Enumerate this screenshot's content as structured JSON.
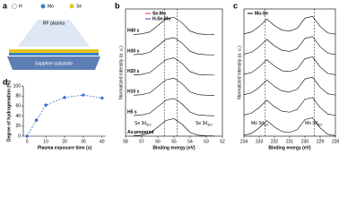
{
  "panel_a": {
    "label": "a",
    "legend": [
      "H",
      "Mo",
      "Se"
    ],
    "source": "RF plasma",
    "substrate": "Sapphire substrate"
  },
  "chart_data": [
    {
      "type": "line",
      "panel": "d",
      "xlabel": "Plasma exposure time (s)",
      "ylabel": "Degree of hydrogenation (%)",
      "x": [
        0,
        5,
        10,
        20,
        30,
        40
      ],
      "series": [
        {
          "color": "#3b6fd6",
          "values": [
            0,
            32,
            62,
            77,
            82,
            76
          ]
        }
      ],
      "xlim": [
        -2,
        42
      ],
      "ylim": [
        0,
        100
      ],
      "xticks": [
        0,
        10,
        20,
        30,
        40
      ],
      "yticks": [
        0,
        20,
        40,
        60,
        80,
        100
      ],
      "markers": true
    },
    {
      "type": "line",
      "panel": "b",
      "xlabel": "Binding energy (eV)",
      "ylabel": "Normalized intensity (a. u.)",
      "x": [
        57.5,
        57,
        56.5,
        56,
        55.5,
        55,
        54.5,
        54,
        53.5,
        53,
        52.5
      ],
      "series": [
        {
          "name": "As-prepared",
          "color": "#000000",
          "values": [
            0.02,
            0.05,
            0.15,
            0.5,
            0.85,
            0.95,
            0.65,
            0.2,
            0.05,
            0.02,
            0.01
          ]
        },
        {
          "name": "H5 s",
          "color": "#000000",
          "values": [
            1.12,
            1.15,
            1.25,
            1.6,
            1.95,
            2.05,
            1.75,
            1.3,
            1.15,
            1.12,
            1.11
          ]
        },
        {
          "name": "H10 s",
          "color": "#000000",
          "values": [
            2.22,
            2.25,
            2.35,
            2.7,
            3.05,
            3.15,
            2.85,
            2.4,
            2.25,
            2.22,
            2.21
          ]
        },
        {
          "name": "H20 s",
          "color": "#000000",
          "values": [
            3.32,
            3.35,
            3.45,
            3.8,
            4.15,
            4.25,
            3.95,
            3.5,
            3.35,
            3.32,
            3.31
          ]
        },
        {
          "name": "H30 s",
          "color": "#000000",
          "values": [
            4.42,
            4.45,
            4.55,
            4.9,
            5.25,
            5.35,
            5.05,
            4.6,
            4.45,
            4.42,
            4.41
          ]
        },
        {
          "name": "H40 s",
          "color": "#000000",
          "values": [
            5.52,
            5.55,
            5.65,
            6.0,
            6.35,
            6.45,
            6.15,
            5.7,
            5.55,
            5.52,
            5.51
          ]
        }
      ],
      "legend": [
        {
          "name": "Se-Mo",
          "color": "#e0303a"
        },
        {
          "name": "H-Se-Mo",
          "color": "#2b4fc4"
        }
      ],
      "vlines": [
        55.6,
        54.8
      ],
      "annotations": [
        {
          "text": "Se 3d",
          "sub": "5/2"
        },
        {
          "text": "Se 3d",
          "sub": "3/2"
        }
      ],
      "xlim": [
        58,
        52
      ],
      "ylim": [
        0,
        6.9
      ],
      "xticks": [
        58,
        57,
        56,
        55,
        54,
        53,
        52
      ]
    },
    {
      "type": "line",
      "panel": "c",
      "xlabel": "Binding energy (eV)",
      "ylabel": "Normalized intensity (a. u.)",
      "x": [
        234,
        233.5,
        233,
        232.5,
        232,
        231.5,
        231,
        230.5,
        230,
        229.5,
        229,
        228.5,
        228
      ],
      "series": [
        {
          "color": "#000000",
          "values": [
            0.05,
            0.15,
            0.45,
            0.85,
            0.5,
            0.25,
            0.2,
            0.35,
            0.9,
            1.0,
            0.45,
            0.1,
            0.03
          ]
        },
        {
          "color": "#000000",
          "values": [
            1.15,
            1.25,
            1.55,
            1.95,
            1.6,
            1.35,
            1.3,
            1.45,
            2.0,
            2.1,
            1.55,
            1.2,
            1.13
          ]
        },
        {
          "color": "#000000",
          "values": [
            2.25,
            2.35,
            2.65,
            3.05,
            2.7,
            2.45,
            2.4,
            2.55,
            3.1,
            3.2,
            2.65,
            2.3,
            2.23
          ]
        },
        {
          "color": "#000000",
          "values": [
            3.35,
            3.45,
            3.75,
            4.15,
            3.8,
            3.55,
            3.5,
            3.65,
            4.2,
            4.3,
            3.75,
            3.4,
            3.33
          ]
        },
        {
          "color": "#000000",
          "values": [
            4.45,
            4.55,
            4.85,
            5.25,
            4.9,
            4.65,
            4.6,
            4.75,
            5.3,
            5.4,
            4.85,
            4.5,
            4.43
          ]
        },
        {
          "color": "#000000",
          "values": [
            5.55,
            5.65,
            5.95,
            6.35,
            6.0,
            5.75,
            5.7,
            5.85,
            6.4,
            6.5,
            5.95,
            5.6,
            5.53
          ]
        }
      ],
      "legend": [
        {
          "name": "Mo-Se",
          "color": "#000000"
        }
      ],
      "vlines": [
        232.6,
        229.4
      ],
      "annotations": [
        {
          "text": "Mo 3d",
          "sub": "3/2"
        },
        {
          "text": "Mo 3d",
          "sub": "5/2"
        }
      ],
      "xlim": [
        234,
        228
      ],
      "ylim": [
        0,
        6.9
      ],
      "xticks": [
        234,
        233,
        232,
        231,
        230,
        229,
        228
      ]
    }
  ]
}
